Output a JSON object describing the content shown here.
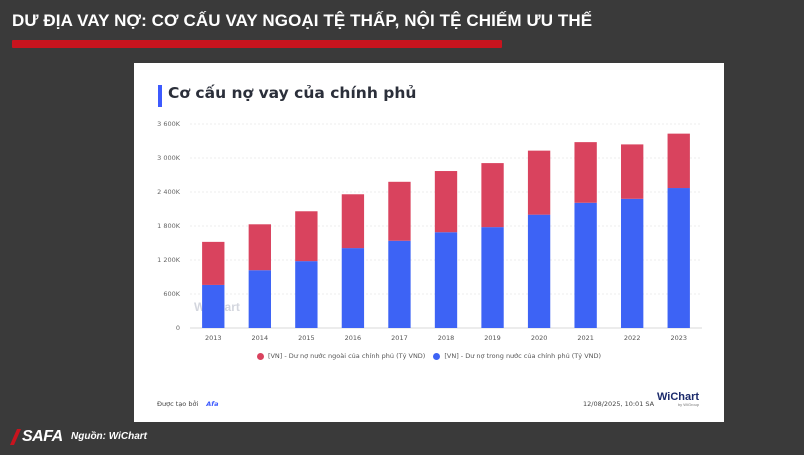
{
  "slide": {
    "title": "DƯ ĐỊA VAY NỢ: CƠ CẤU VAY NGOẠI TỆ THẤP, NỘI TỆ CHIẾM ƯU THẾ",
    "source": "Nguồn: WiChart",
    "brand": "SAFA",
    "colors": {
      "background": "#3a3a3a",
      "accent": "#c8141e"
    }
  },
  "card": {
    "created_label": "Được tạo bởi",
    "created_by": "Afa",
    "timestamp": "12/08/2025, 10:01 SA",
    "logo": "WiChart",
    "logo_sub": "by WiGroup",
    "watermark": "WiChart"
  },
  "chart_data": {
    "type": "bar",
    "stacked": true,
    "title": "Cơ cấu nợ vay của chính phủ",
    "categories": [
      "2013",
      "2014",
      "2015",
      "2016",
      "2017",
      "2018",
      "2019",
      "2020",
      "2021",
      "2022",
      "2023"
    ],
    "series": [
      {
        "name": "[VN] - Dư nợ trong nước của chính phủ (Tỷ VND)",
        "color": "#3d63f5",
        "values": [
          760,
          1020,
          1180,
          1410,
          1540,
          1690,
          1780,
          2000,
          2210,
          2280,
          2470
        ]
      },
      {
        "name": "[VN] - Dư nợ nước ngoài của chính phủ (Tỷ VND)",
        "color": "#d9435e",
        "values": [
          760,
          810,
          880,
          950,
          1040,
          1080,
          1130,
          1130,
          1070,
          960,
          960
        ]
      }
    ],
    "legend_order": [
      1,
      0
    ],
    "yticks": [
      "0",
      "600K",
      "1 200K",
      "1 800K",
      "2 400K",
      "3 000K",
      "3 600K"
    ],
    "ylim": [
      0,
      3600
    ],
    "grid": true,
    "legend": "bottom"
  }
}
